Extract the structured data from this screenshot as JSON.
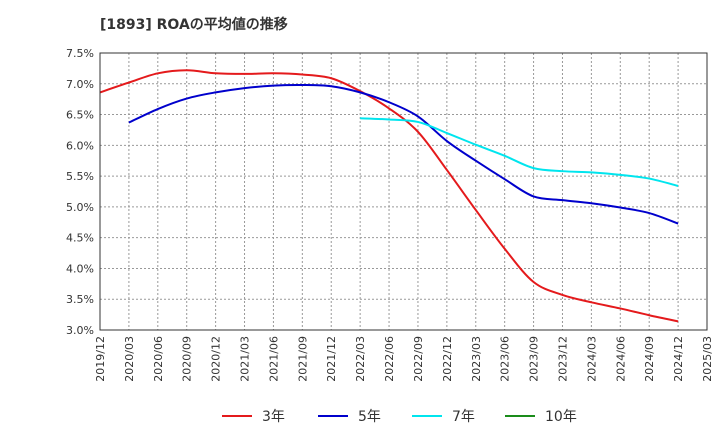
{
  "chart_data": {
    "type": "line",
    "title": "[1893]  ROAの平均値の推移",
    "xlabel": "",
    "ylabel": "",
    "ylim": [
      3.0,
      7.5
    ],
    "y_ticks": [
      "3.0%",
      "3.5%",
      "4.0%",
      "4.5%",
      "5.0%",
      "5.5%",
      "6.0%",
      "6.5%",
      "7.0%",
      "7.5%"
    ],
    "x_ticks": [
      "2019/12",
      "2020/03",
      "2020/06",
      "2020/09",
      "2020/12",
      "2021/03",
      "2021/06",
      "2021/09",
      "2021/12",
      "2022/03",
      "2022/06",
      "2022/09",
      "2022/12",
      "2023/03",
      "2023/06",
      "2023/09",
      "2023/12",
      "2024/03",
      "2024/06",
      "2024/09",
      "2024/12",
      "2025/03"
    ],
    "grid": true,
    "legend_position": "bottom",
    "series": [
      {
        "name": "3年",
        "color": "#e41a1c",
        "x": [
          "2019/12",
          "2020/03",
          "2020/06",
          "2020/09",
          "2020/12",
          "2021/03",
          "2021/06",
          "2021/09",
          "2021/12",
          "2022/03",
          "2022/06",
          "2022/09",
          "2022/12",
          "2023/03",
          "2023/06",
          "2023/09",
          "2023/12",
          "2024/03",
          "2024/06",
          "2024/09",
          "2024/12"
        ],
        "values": [
          6.86,
          7.02,
          7.17,
          7.22,
          7.17,
          7.16,
          7.17,
          7.15,
          7.09,
          6.88,
          6.6,
          6.22,
          5.6,
          4.95,
          4.32,
          3.78,
          3.57,
          3.45,
          3.35,
          3.24,
          3.14
        ]
      },
      {
        "name": "5年",
        "color": "#0000cc",
        "x": [
          "2020/03",
          "2020/06",
          "2020/09",
          "2020/12",
          "2021/03",
          "2021/06",
          "2021/09",
          "2021/12",
          "2022/03",
          "2022/06",
          "2022/09",
          "2022/12",
          "2023/03",
          "2023/06",
          "2023/09",
          "2023/12",
          "2024/03",
          "2024/06",
          "2024/09",
          "2024/12"
        ],
        "values": [
          6.37,
          6.59,
          6.76,
          6.86,
          6.93,
          6.97,
          6.98,
          6.96,
          6.86,
          6.7,
          6.47,
          6.07,
          5.75,
          5.45,
          5.17,
          5.11,
          5.06,
          4.99,
          4.9,
          4.73
        ]
      },
      {
        "name": "7年",
        "color": "#00e5ee",
        "x": [
          "2022/03",
          "2022/06",
          "2022/09",
          "2022/12",
          "2023/03",
          "2023/06",
          "2023/09",
          "2023/12",
          "2024/03",
          "2024/06",
          "2024/09",
          "2024/12"
        ],
        "values": [
          6.44,
          6.42,
          6.38,
          6.2,
          6.01,
          5.83,
          5.63,
          5.58,
          5.56,
          5.52,
          5.46,
          5.34
        ]
      },
      {
        "name": "10年",
        "color": "#1a8c1a",
        "x": [],
        "values": []
      }
    ]
  }
}
